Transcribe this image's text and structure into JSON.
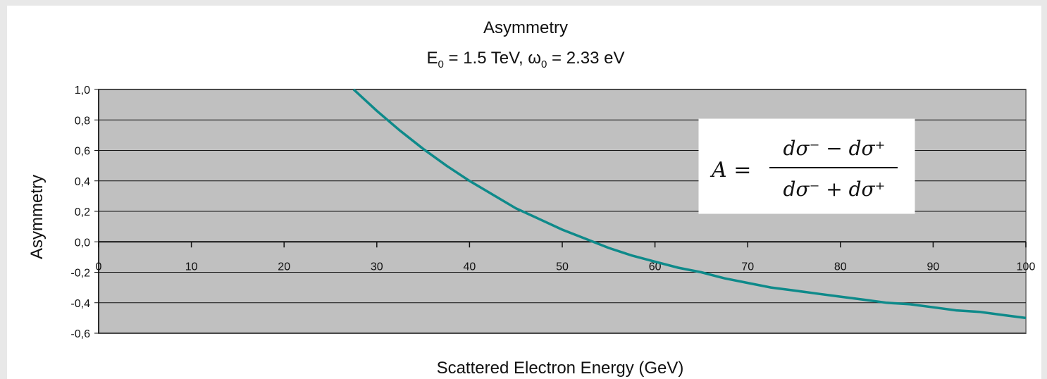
{
  "chart_data": {
    "type": "line",
    "title": "Asymmetry",
    "subtitle": {
      "e_symbol": "E",
      "e_sub": "0",
      "e_value": " = 1.5 TeV, ",
      "w_symbol": "ω",
      "w_sub": "0",
      "w_value": " = 2.33 eV"
    },
    "xlabel": "Scattered Electron Energy (GeV)",
    "ylabel": "Asymmetry",
    "xlim": [
      0,
      100
    ],
    "ylim": [
      -0.6,
      1.0
    ],
    "x_ticks": [
      "0",
      "10",
      "20",
      "30",
      "40",
      "50",
      "60",
      "70",
      "80",
      "90",
      "100"
    ],
    "y_ticks": [
      "1,0",
      "0,8",
      "0,6",
      "0,4",
      "0,2",
      "0,0",
      "-0,2",
      "-0,4",
      "-0,6"
    ],
    "grid": true,
    "plot_background": "#c0c0c0",
    "series": [
      {
        "color": "#0e8a8a",
        "x": [
          27.5,
          30,
          32.5,
          35,
          37.5,
          40,
          42.5,
          45,
          47.5,
          50,
          52.5,
          55,
          57.5,
          60,
          62.5,
          65,
          67.5,
          70,
          72.5,
          75,
          77.5,
          80,
          82.5,
          85,
          87.5,
          90,
          92.5,
          95,
          97.5,
          100
        ],
        "y": [
          1.0,
          0.86,
          0.73,
          0.61,
          0.5,
          0.4,
          0.31,
          0.22,
          0.15,
          0.08,
          0.02,
          -0.04,
          -0.09,
          -0.13,
          -0.17,
          -0.2,
          -0.24,
          -0.27,
          -0.3,
          -0.32,
          -0.34,
          -0.36,
          -0.38,
          -0.4,
          -0.41,
          -0.43,
          -0.45,
          -0.46,
          -0.48,
          -0.5
        ]
      }
    ],
    "annotation": {
      "lhs": "A =",
      "numerator": "dσ⁻ − dσ⁺",
      "denominator": "dσ⁻ + dσ⁺"
    }
  }
}
